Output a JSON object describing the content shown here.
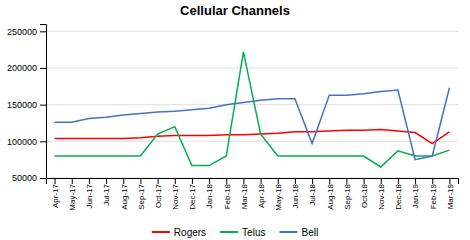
{
  "chart_data": {
    "type": "line",
    "title": "Cellular Channels",
    "categories": [
      "Apr-17",
      "May-17",
      "Jun-17",
      "Jul-17",
      "Aug-17",
      "Sep-17",
      "Oct-17",
      "Nov-17",
      "Dec-17",
      "Jan-18",
      "Feb-18",
      "Mar-18",
      "Apr-18",
      "May-18",
      "Jun-18",
      "Jul-18",
      "Aug-18",
      "Sep-18",
      "Oct-18",
      "Nov-18",
      "Dec-18",
      "Jan-19",
      "Feb-19",
      "Mar-19"
    ],
    "series": [
      {
        "name": "Rogers",
        "color": "#ff0000",
        "values": [
          104000,
          104000,
          104000,
          104000,
          104000,
          105000,
          107000,
          108000,
          108000,
          108000,
          109000,
          109000,
          110000,
          111000,
          113000,
          113000,
          114000,
          115000,
          115000,
          116000,
          114000,
          112000,
          97000,
          113000
        ]
      },
      {
        "name": "Telus",
        "color": "#00b050",
        "values": [
          80000,
          80000,
          80000,
          80000,
          80000,
          80000,
          110000,
          120000,
          67000,
          67000,
          80000,
          222000,
          110000,
          80000,
          80000,
          80000,
          80000,
          80000,
          80000,
          65000,
          87000,
          80000,
          80000,
          88000
        ]
      },
      {
        "name": "Bell",
        "color": "#4472c4",
        "values": [
          126000,
          126000,
          131000,
          133000,
          136000,
          138000,
          140000,
          141000,
          143000,
          145000,
          150000,
          153000,
          156000,
          158000,
          158000,
          97000,
          163000,
          163000,
          165000,
          168000,
          170000,
          75000,
          80000,
          173000
        ]
      }
    ],
    "ylim": [
      50000,
      260000
    ],
    "yticks": [
      50000,
      100000,
      150000,
      200000,
      250000
    ],
    "grid": true,
    "legend": "bottom"
  }
}
